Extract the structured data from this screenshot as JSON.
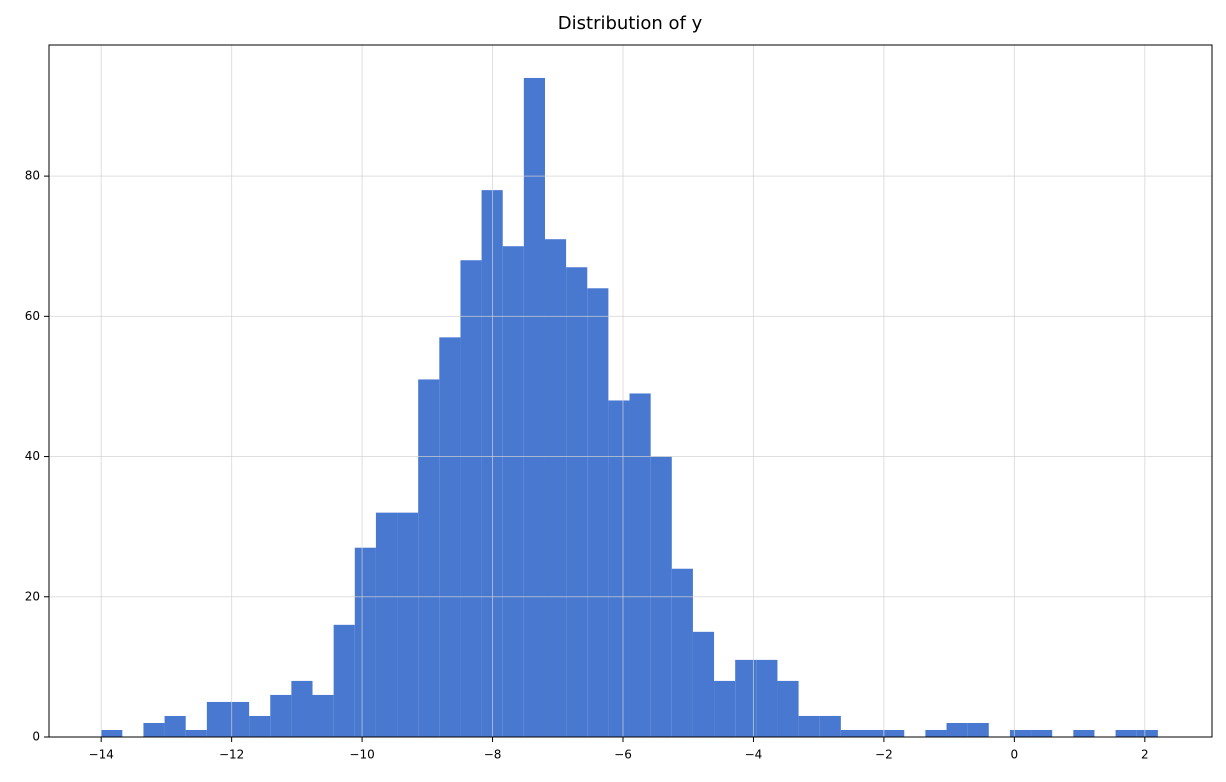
{
  "chart_data": {
    "type": "histogram",
    "title": "Distribution of y",
    "bins": [
      -14,
      -13.676,
      -13.352,
      -13.028,
      -12.704,
      -12.38,
      -12.056,
      -11.732,
      -11.408,
      -11.084,
      -10.76,
      -10.436,
      -10.112,
      -9.788,
      -9.464,
      -9.14,
      -8.816,
      -8.492,
      -8.168,
      -7.844,
      -7.52,
      -7.196,
      -6.872,
      -6.548,
      -6.224,
      -5.9,
      -5.576,
      -5.252,
      -4.928,
      -4.604,
      -4.28,
      -3.956,
      -3.632,
      -3.308,
      -2.984,
      -2.66,
      -2.336,
      -2.012,
      -1.688,
      -1.364,
      -1.04,
      -0.716,
      -0.392,
      -0.068,
      0.256,
      0.58,
      0.904,
      1.228,
      1.552,
      1.876,
      2.2
    ],
    "values": [
      1,
      0,
      2,
      3,
      1,
      5,
      5,
      3,
      6,
      8,
      6,
      16,
      27,
      32,
      32,
      51,
      57,
      68,
      78,
      70,
      94,
      71,
      67,
      64,
      48,
      49,
      40,
      24,
      15,
      8,
      11,
      11,
      8,
      3,
      3,
      1,
      1,
      1,
      0,
      1,
      2,
      2,
      0,
      1,
      1,
      0,
      1,
      0,
      1,
      1
    ],
    "color": "#4878d0",
    "xlim": [
      -14.8,
      3.03
    ],
    "ylim": [
      0,
      98.7
    ],
    "xticks": [
      {
        "value": -14,
        "label": "−14"
      },
      {
        "value": -12,
        "label": "−12"
      },
      {
        "value": -10,
        "label": "−10"
      },
      {
        "value": -8,
        "label": "−8"
      },
      {
        "value": -6,
        "label": "−6"
      },
      {
        "value": -4,
        "label": "−4"
      },
      {
        "value": -2,
        "label": "−2"
      },
      0,
      2
    ],
    "yticks": [
      0,
      20,
      40,
      60,
      80
    ],
    "grid": true
  }
}
